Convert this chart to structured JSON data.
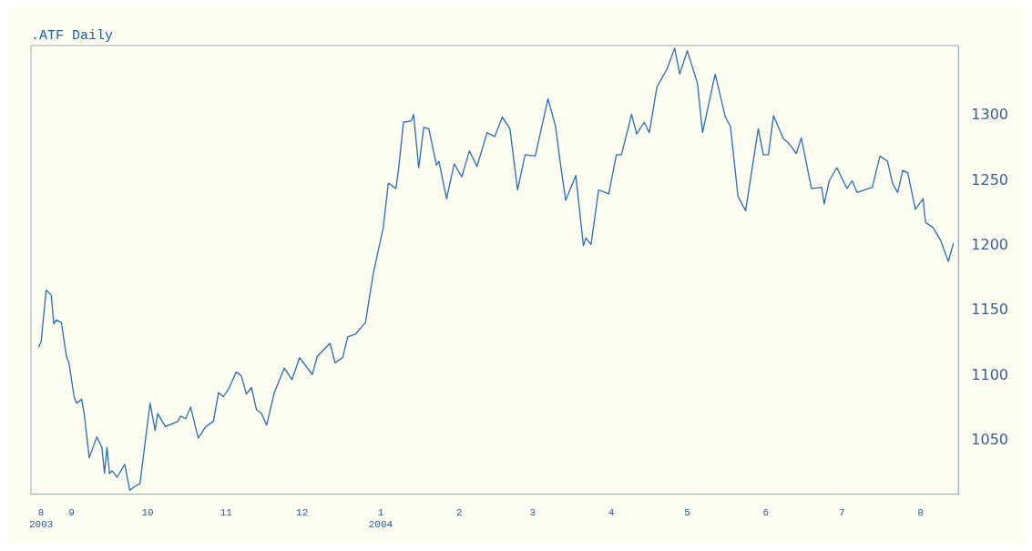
{
  "chart_data": {
    "type": "line",
    "title": ".ATF Daily",
    "x": [
      "2003-08-19",
      "2003-08-20",
      "2003-08-22",
      "2003-08-24",
      "2003-08-25",
      "2003-08-26",
      "2003-08-28",
      "2003-08-30",
      "2003-08-31",
      "2003-09-02",
      "2003-09-03",
      "2003-09-05",
      "2003-09-06",
      "2003-09-08",
      "2003-09-11",
      "2003-09-13",
      "2003-09-14",
      "2003-09-15",
      "2003-09-16",
      "2003-09-17",
      "2003-09-19",
      "2003-09-22",
      "2003-09-24",
      "2003-09-26",
      "2003-09-28",
      "2003-10-02",
      "2003-10-04",
      "2003-10-05",
      "2003-10-08",
      "2003-10-13",
      "2003-10-14",
      "2003-10-16",
      "2003-10-18",
      "2003-10-21",
      "2003-10-24",
      "2003-10-27",
      "2003-10-29",
      "2003-10-31",
      "2003-11-02",
      "2003-11-05",
      "2003-11-07",
      "2003-11-09",
      "2003-11-11",
      "2003-11-13",
      "2003-11-15",
      "2003-11-17",
      "2003-11-20",
      "2003-11-24",
      "2003-11-27",
      "2003-11-30",
      "2003-12-05",
      "2003-12-07",
      "2003-12-12",
      "2003-12-14",
      "2003-12-17",
      "2003-12-19",
      "2003-12-22",
      "2003-12-26",
      "2003-12-29",
      "2004-01-02",
      "2004-01-04",
      "2004-01-05",
      "2004-01-07",
      "2004-01-08",
      "2004-01-10",
      "2004-01-13",
      "2004-01-14",
      "2004-01-16",
      "2004-01-18",
      "2004-01-20",
      "2004-01-23",
      "2004-01-24",
      "2004-01-27",
      "2004-01-30",
      "2004-02-02",
      "2004-02-05",
      "2004-02-08",
      "2004-02-12",
      "2004-02-15",
      "2004-02-18",
      "2004-02-21",
      "2004-02-24",
      "2004-02-27",
      "2004-03-02",
      "2004-03-07",
      "2004-03-10",
      "2004-03-12",
      "2004-03-14",
      "2004-03-18",
      "2004-03-21",
      "2004-03-22",
      "2004-03-24",
      "2004-03-27",
      "2004-03-31",
      "2004-04-03",
      "2004-04-05",
      "2004-04-09",
      "2004-04-11",
      "2004-04-14",
      "2004-04-16",
      "2004-04-19",
      "2004-04-23",
      "2004-04-26",
      "2004-04-28",
      "2004-05-01",
      "2004-05-05",
      "2004-05-07",
      "2004-05-12",
      "2004-05-16",
      "2004-05-18",
      "2004-05-21",
      "2004-05-24",
      "2004-05-29",
      "2004-05-31",
      "2004-06-02",
      "2004-06-04",
      "2004-06-08",
      "2004-06-10",
      "2004-06-13",
      "2004-06-15",
      "2004-06-19",
      "2004-06-23",
      "2004-06-24",
      "2004-06-26",
      "2004-06-29",
      "2004-07-03",
      "2004-07-05",
      "2004-07-07",
      "2004-07-13",
      "2004-07-16",
      "2004-07-19",
      "2004-07-21",
      "2004-07-23",
      "2004-07-25",
      "2004-07-27",
      "2004-07-30",
      "2004-08-02",
      "2004-08-03",
      "2004-08-06",
      "2004-08-09",
      "2004-08-12",
      "2004-08-14"
    ],
    "series": [
      {
        "color": "#2a6db5",
        "values": [
          1122,
          1126,
          1166,
          1162,
          1140,
          1143,
          1141,
          1115,
          1110,
          1084,
          1079,
          1082,
          1071,
          1037,
          1053,
          1045,
          1025,
          1045,
          1025,
          1027,
          1022,
          1032,
          1012,
          1015,
          1017,
          1079,
          1058,
          1071,
          1061,
          1065,
          1069,
          1067,
          1076,
          1052,
          1061,
          1065,
          1087,
          1084,
          1090,
          1103,
          1100,
          1086,
          1091,
          1074,
          1071,
          1062,
          1087,
          1106,
          1097,
          1114,
          1101,
          1115,
          1125,
          1110,
          1114,
          1130,
          1132,
          1141,
          1178,
          1214,
          1248,
          1247,
          1244,
          1258,
          1295,
          1296,
          1301,
          1260,
          1291,
          1290,
          1262,
          1265,
          1236,
          1263,
          1253,
          1273,
          1261,
          1287,
          1284,
          1299,
          1290,
          1243,
          1270,
          1269,
          1313,
          1292,
          1262,
          1235,
          1254,
          1200,
          1206,
          1201,
          1243,
          1240,
          1270,
          1270,
          1301,
          1286,
          1295,
          1287,
          1322,
          1336,
          1352,
          1332,
          1350,
          1325,
          1287,
          1332,
          1299,
          1292,
          1238,
          1227,
          1290,
          1270,
          1270,
          1300,
          1282,
          1279,
          1271,
          1283,
          1244,
          1245,
          1232,
          1250,
          1260,
          1244,
          1250,
          1241,
          1245,
          1269,
          1265,
          1248,
          1241,
          1258,
          1256,
          1228,
          1236,
          1218,
          1214,
          1204,
          1188,
          1202
        ]
      }
    ],
    "xlim": [
      "2003-08-16",
      "2004-08-16"
    ],
    "xticks": [
      {
        "value": "2003-08-20",
        "label": "8\n2003"
      },
      {
        "value": "2003-09-01",
        "label": "9"
      },
      {
        "value": "2003-10-01",
        "label": "10"
      },
      {
        "value": "2003-11-01",
        "label": "11"
      },
      {
        "value": "2003-12-01",
        "label": "12"
      },
      {
        "value": "2004-01-01",
        "label": "1\n2004"
      },
      {
        "value": "2004-02-01",
        "label": "2"
      },
      {
        "value": "2004-03-01",
        "label": "3"
      },
      {
        "value": "2004-04-01",
        "label": "4"
      },
      {
        "value": "2004-05-01",
        "label": "5"
      },
      {
        "value": "2004-06-01",
        "label": "6"
      },
      {
        "value": "2004-07-01",
        "label": "7"
      },
      {
        "value": "2004-08-01",
        "label": "8"
      }
    ],
    "ylim": [
      1009,
      1354
    ],
    "yticks": [
      1050,
      1100,
      1150,
      1200,
      1250,
      1300
    ],
    "grid": false,
    "legend": false,
    "marker": "none",
    "line_style": "solid"
  }
}
